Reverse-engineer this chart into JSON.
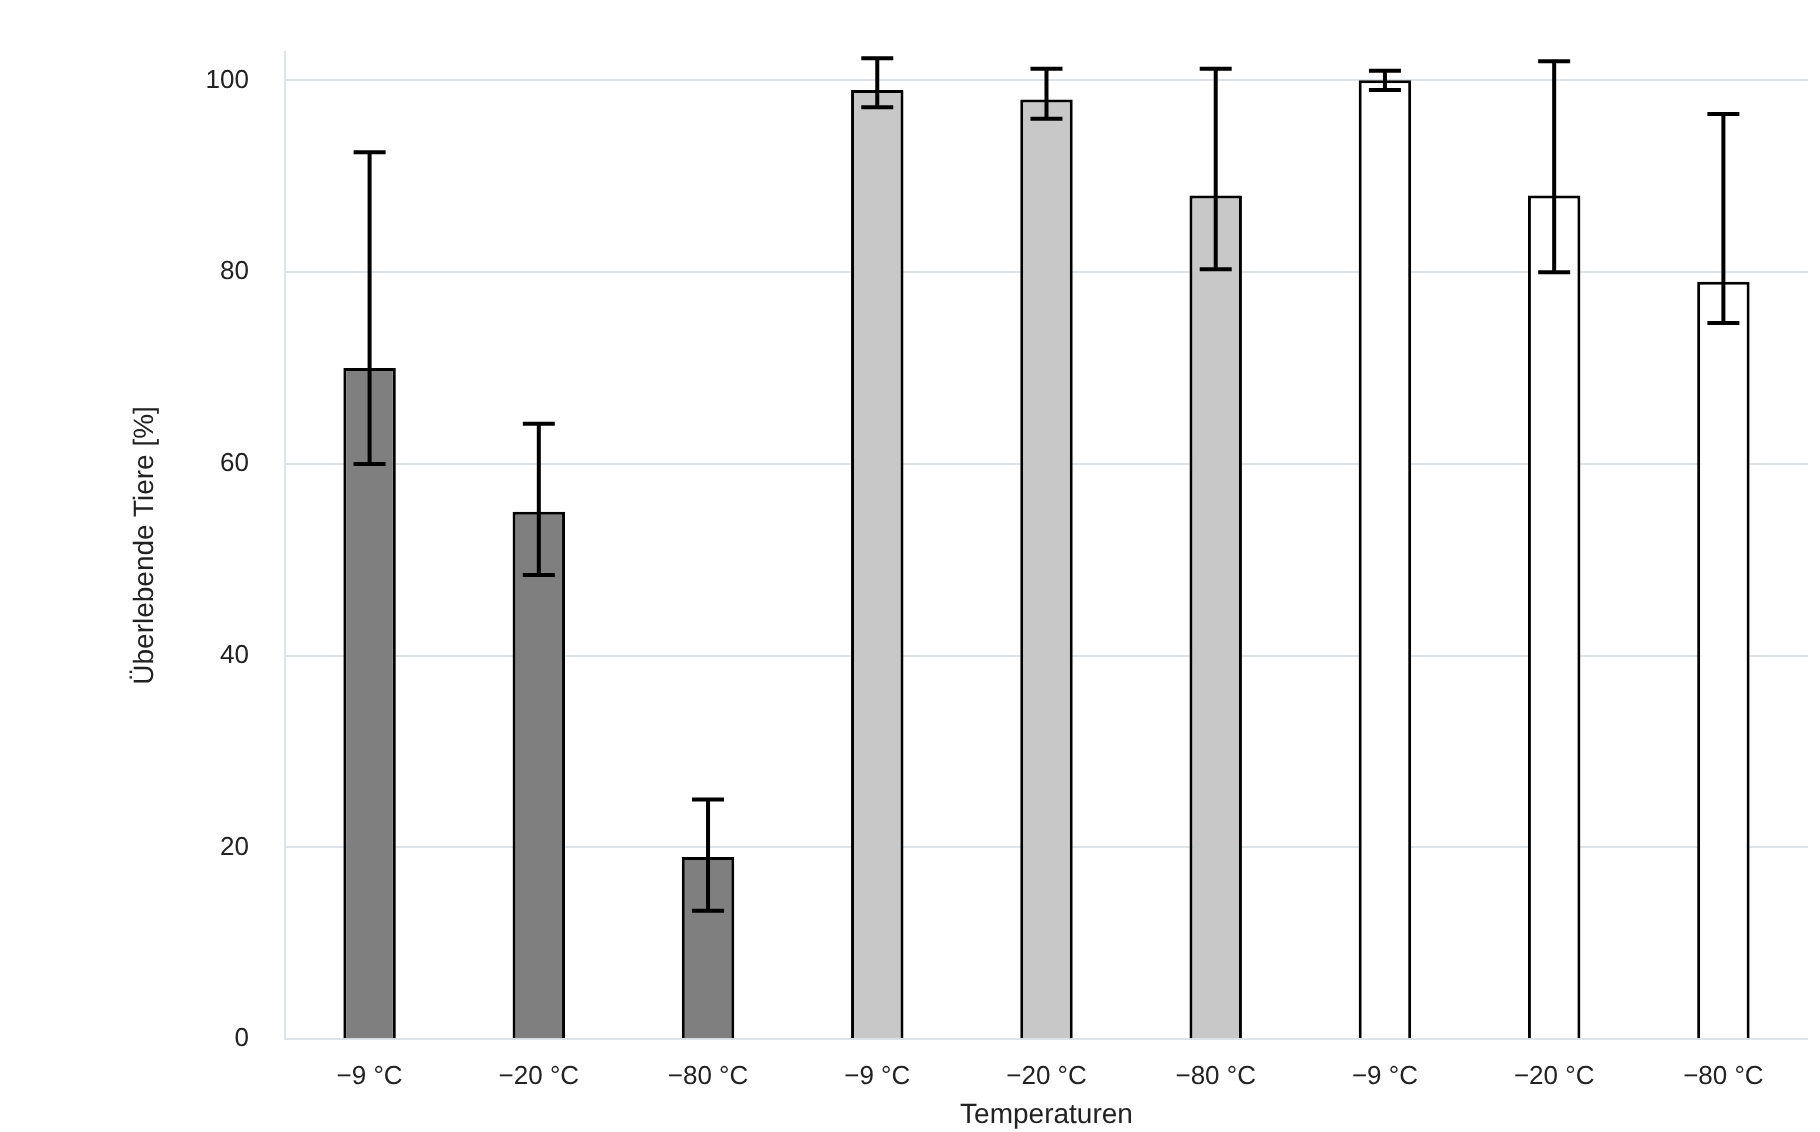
{
  "chart_data": {
    "type": "bar",
    "xlabel": "Temperaturen",
    "ylabel": "Überlebende Tiere [%]",
    "categories": [
      "−9 °C",
      "−20 °C",
      "−80 °C",
      "−9 °C",
      "−20 °C",
      "−80 °C",
      "−9 °C",
      "−20 °C",
      "−80 °C"
    ],
    "values": [
      70,
      55,
      19,
      99,
      98,
      88,
      100,
      88,
      79
    ],
    "colors": [
      "#7f7f7f",
      "#7f7f7f",
      "#7f7f7f",
      "#c8c8c8",
      "#c8c8c8",
      "#c8c8c8",
      "#ffffff",
      "#ffffff",
      "#ffffff"
    ],
    "errors": [
      [
        60,
        92.5
      ],
      [
        48.4,
        64.2
      ],
      [
        13.4,
        25
      ],
      [
        97.2,
        102.3
      ],
      [
        96,
        101.2
      ],
      [
        80.3,
        101.2
      ],
      [
        99,
        101
      ],
      [
        80,
        102
      ],
      [
        74.7,
        96.5
      ]
    ],
    "ylim": [
      0,
      103
    ],
    "yticks": [
      0,
      20,
      40,
      60,
      80,
      100
    ],
    "grid": "y",
    "legend": false
  }
}
